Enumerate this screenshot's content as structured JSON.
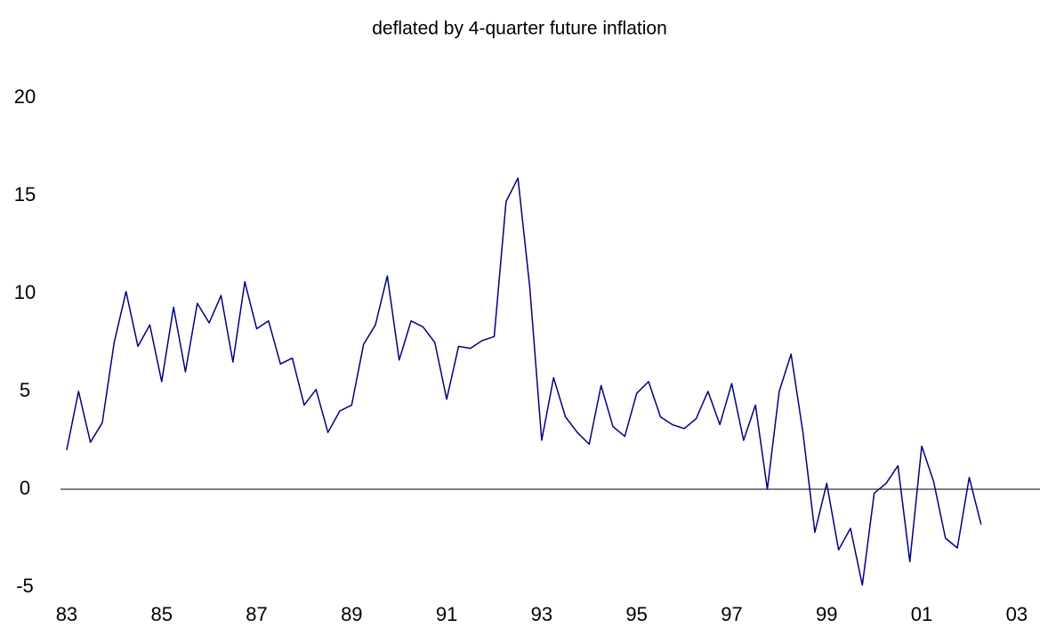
{
  "chart_data": {
    "type": "line",
    "title": "deflated by 4-quarter future inflation",
    "x": [
      1983,
      1983.25,
      1983.5,
      1983.75,
      1984,
      1984.25,
      1984.5,
      1984.75,
      1985,
      1985.25,
      1985.5,
      1985.75,
      1986,
      1986.25,
      1986.5,
      1986.75,
      1987,
      1987.25,
      1987.5,
      1987.75,
      1988,
      1988.25,
      1988.5,
      1988.75,
      1989,
      1989.25,
      1989.5,
      1989.75,
      1990,
      1990.25,
      1990.5,
      1990.75,
      1991,
      1991.25,
      1991.5,
      1991.75,
      1992,
      1992.25,
      1992.5,
      1992.75,
      1993,
      1993.25,
      1993.5,
      1993.75,
      1994,
      1994.25,
      1994.5,
      1994.75,
      1995,
      1995.25,
      1995.5,
      1995.75,
      1996,
      1996.25,
      1996.5,
      1996.75,
      1997,
      1997.25,
      1997.5,
      1997.75,
      1998,
      1998.25,
      1998.5,
      1998.75,
      1999,
      1999.25,
      1999.5,
      1999.75,
      2000,
      2000.25,
      2000.5,
      2000.75,
      2001,
      2001.25,
      2001.5,
      2001.75,
      2002,
      2002.25
    ],
    "series": [
      {
        "color": "#000080",
        "values": [
          2.0,
          5.0,
          2.4,
          3.4,
          7.5,
          10.1,
          7.3,
          8.4,
          5.5,
          9.3,
          6.0,
          9.5,
          8.5,
          9.9,
          6.5,
          10.6,
          8.2,
          8.6,
          6.4,
          6.7,
          4.3,
          5.1,
          2.9,
          4.0,
          4.3,
          7.4,
          8.4,
          10.9,
          6.6,
          8.6,
          8.3,
          7.5,
          4.6,
          7.3,
          7.2,
          7.6,
          7.8,
          14.7,
          15.9,
          10.3,
          2.5,
          5.7,
          3.7,
          2.9,
          2.3,
          5.3,
          3.2,
          2.7,
          4.9,
          5.5,
          3.7,
          3.3,
          3.1,
          3.6,
          5.0,
          3.3,
          5.4,
          2.5,
          4.3,
          0.0,
          5.0,
          6.9,
          2.9,
          -2.2,
          0.3,
          -3.1,
          -2.0,
          -4.9,
          -0.2,
          0.3,
          1.2,
          -3.7,
          2.2,
          0.4,
          -2.5,
          -3.0,
          0.6,
          -1.8
        ]
      }
    ],
    "xlim": [
      1982.87,
      2003.49
    ],
    "xticks": [
      {
        "value": 1983,
        "label": "83"
      },
      {
        "value": 1985,
        "label": "85"
      },
      {
        "value": 1987,
        "label": "87"
      },
      {
        "value": 1989,
        "label": "89"
      },
      {
        "value": 1991,
        "label": "91"
      },
      {
        "value": 1993,
        "label": "93"
      },
      {
        "value": 1995,
        "label": "95"
      },
      {
        "value": 1997,
        "label": "97"
      },
      {
        "value": 1999,
        "label": "99"
      },
      {
        "value": 2001,
        "label": "01"
      },
      {
        "value": 2003,
        "label": "03"
      }
    ],
    "ylim": [
      -5,
      20
    ],
    "yticks": [
      -5,
      0,
      5,
      10,
      15,
      20
    ]
  }
}
